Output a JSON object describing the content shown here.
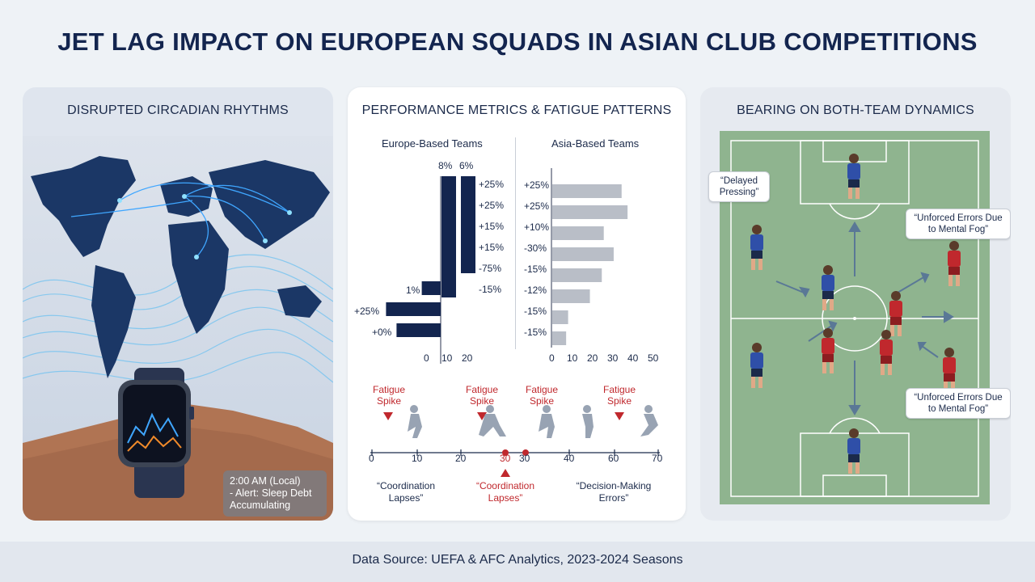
{
  "title": "JET LAG IMPACT ON EUROPEAN SQUADS IN ASIAN CLUB COMPETITIONS",
  "left_panel": {
    "title": "DISRUPTED CIRCADIAN RHYTHMS",
    "watch_time": "2:00 AM (Local)",
    "watch_alert": "- Alert: Sleep Debt Accumulating"
  },
  "middle_panel": {
    "title": "PERFORMANCE METRICS & FATIGUE PATTERNS",
    "europe_chart": {
      "header": "Europe-Based Teams",
      "x_ticks": [
        "0",
        "10",
        "20"
      ],
      "vertical_bars": [
        {
          "top_label": "8%",
          "length": 10
        },
        {
          "top_label": "6%",
          "length": 8
        }
      ],
      "right_labels": [
        "+25%",
        "+25%",
        "+15%",
        "+15%",
        "-75%",
        "-15%"
      ],
      "horizontal_bars": [
        {
          "label": "1%",
          "value": -9
        },
        {
          "label": "+25%",
          "value": -26
        },
        {
          "label": "+0%",
          "value": -21
        }
      ]
    },
    "asia_chart": {
      "header": "Asia-Based Teams",
      "x_ticks": [
        "0",
        "10",
        "20",
        "30",
        "40",
        "50"
      ],
      "bars": [
        {
          "label": "+25%",
          "value": 35
        },
        {
          "label": "+25%",
          "value": 38
        },
        {
          "label": "+10%",
          "value": 26
        },
        {
          "label": "-30%",
          "value": 31
        },
        {
          "label": "-15%",
          "value": 25
        },
        {
          "label": "-12%",
          "value": 19
        },
        {
          "label": "-15%",
          "value": 8
        },
        {
          "label": "-15%",
          "value": 7
        }
      ]
    },
    "timeline": {
      "ticks": [
        "0",
        "10",
        "20",
        "30",
        "30",
        "40",
        "60",
        "70"
      ],
      "highlight_tick": "30",
      "spike_labels": [
        "Fatigue Spike",
        "Fatigue Spike",
        "Fatigue Spike",
        "Fatigue Spike"
      ],
      "bottom_labels": [
        "“Coordination Lapses”",
        "“Coordination Lapses”",
        "“Decision-Making Errors”"
      ]
    }
  },
  "right_panel": {
    "title": "BEARING ON BOTH-TEAM DYNAMICS",
    "callouts": [
      "“Delayed Pressing”",
      "“Unforced Errors Due to Mental Fog”",
      "“Unforced Errors Due to Mental Fog”"
    ]
  },
  "footer": "Data Source: UEFA & AFC Analytics, 2023-2024 Seasons",
  "colors": {
    "navy": "#13254f",
    "grey_bar": "#b9bec7",
    "red": "#c0282d",
    "pitch": "#8fb48f"
  }
}
